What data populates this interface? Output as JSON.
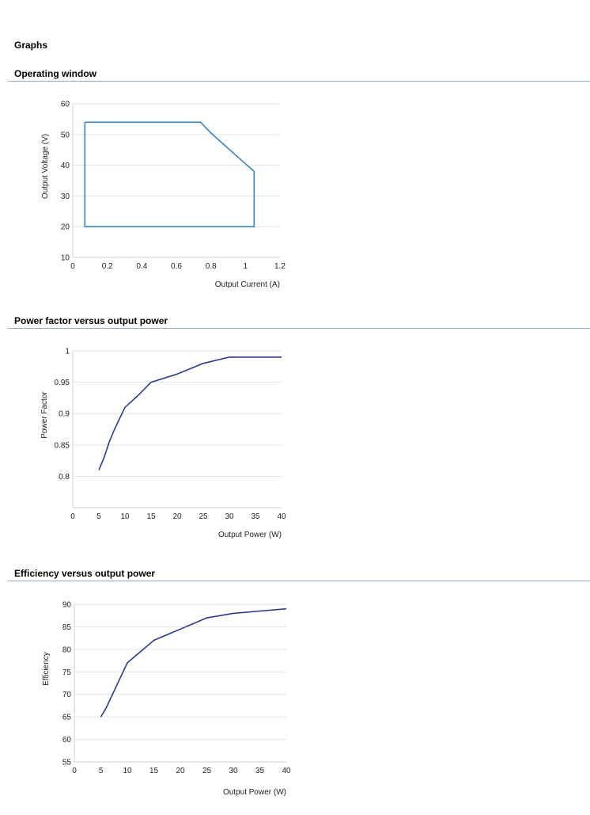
{
  "page": {
    "heading": "Graphs"
  },
  "chart_data": [
    {
      "type": "area",
      "section_title": "Operating window",
      "title": "",
      "xlabel": "Output Current (A)",
      "ylabel": "Output Voltage (V)",
      "xlim": [
        0,
        1.2
      ],
      "ylim": [
        10,
        60
      ],
      "xticks": [
        0,
        0.2,
        0.4,
        0.6,
        0.8,
        1,
        1.2
      ],
      "yticks": [
        10,
        20,
        30,
        40,
        50,
        60
      ],
      "grid": true,
      "color": "#2e86c9",
      "series": [
        {
          "x": [
            0.07,
            0.74,
            0.8,
            0.9,
            1.0,
            1.05,
            1.05,
            0.07,
            0.07
          ],
          "y": [
            54,
            54,
            50.5,
            45.5,
            40.5,
            38,
            20,
            20,
            54
          ]
        }
      ]
    },
    {
      "type": "line",
      "section_title": "Power factor versus output power",
      "title": "",
      "xlabel": "Output Power (W)",
      "ylabel": "Power Factor",
      "xlim": [
        0,
        40
      ],
      "ylim": [
        0.75,
        1
      ],
      "xticks": [
        0,
        5,
        10,
        15,
        20,
        25,
        30,
        35,
        40
      ],
      "yticks": [
        0.8,
        0.85,
        0.9,
        0.95,
        1
      ],
      "ytick_labels": [
        "0.8",
        "0.85",
        "0.9",
        "0.95",
        "1"
      ],
      "grid": true,
      "color": "#2b3a97",
      "series": [
        {
          "x": [
            5,
            6,
            7,
            8,
            10,
            12,
            13,
            15,
            20,
            25,
            30,
            35,
            40
          ],
          "y": [
            0.81,
            0.83,
            0.855,
            0.875,
            0.91,
            0.925,
            0.933,
            0.95,
            0.963,
            0.98,
            0.99,
            0.99,
            0.99
          ]
        }
      ]
    },
    {
      "type": "line",
      "section_title": "Efficiency versus output power",
      "title": "",
      "xlabel": "Output Power (W)",
      "ylabel": "Efficiency",
      "xlim": [
        0,
        40
      ],
      "ylim": [
        55,
        90
      ],
      "xticks": [
        0,
        5,
        10,
        15,
        20,
        25,
        30,
        35,
        40
      ],
      "yticks": [
        55,
        60,
        65,
        70,
        75,
        80,
        85,
        90
      ],
      "grid": true,
      "color": "#2b3a97",
      "series": [
        {
          "x": [
            5,
            6,
            7,
            8,
            10,
            12,
            15,
            18,
            20,
            25,
            30,
            35,
            40
          ],
          "y": [
            65,
            67,
            69.5,
            72,
            77,
            79,
            82,
            83.5,
            84.5,
            87,
            88,
            88.5,
            89
          ]
        }
      ]
    }
  ]
}
